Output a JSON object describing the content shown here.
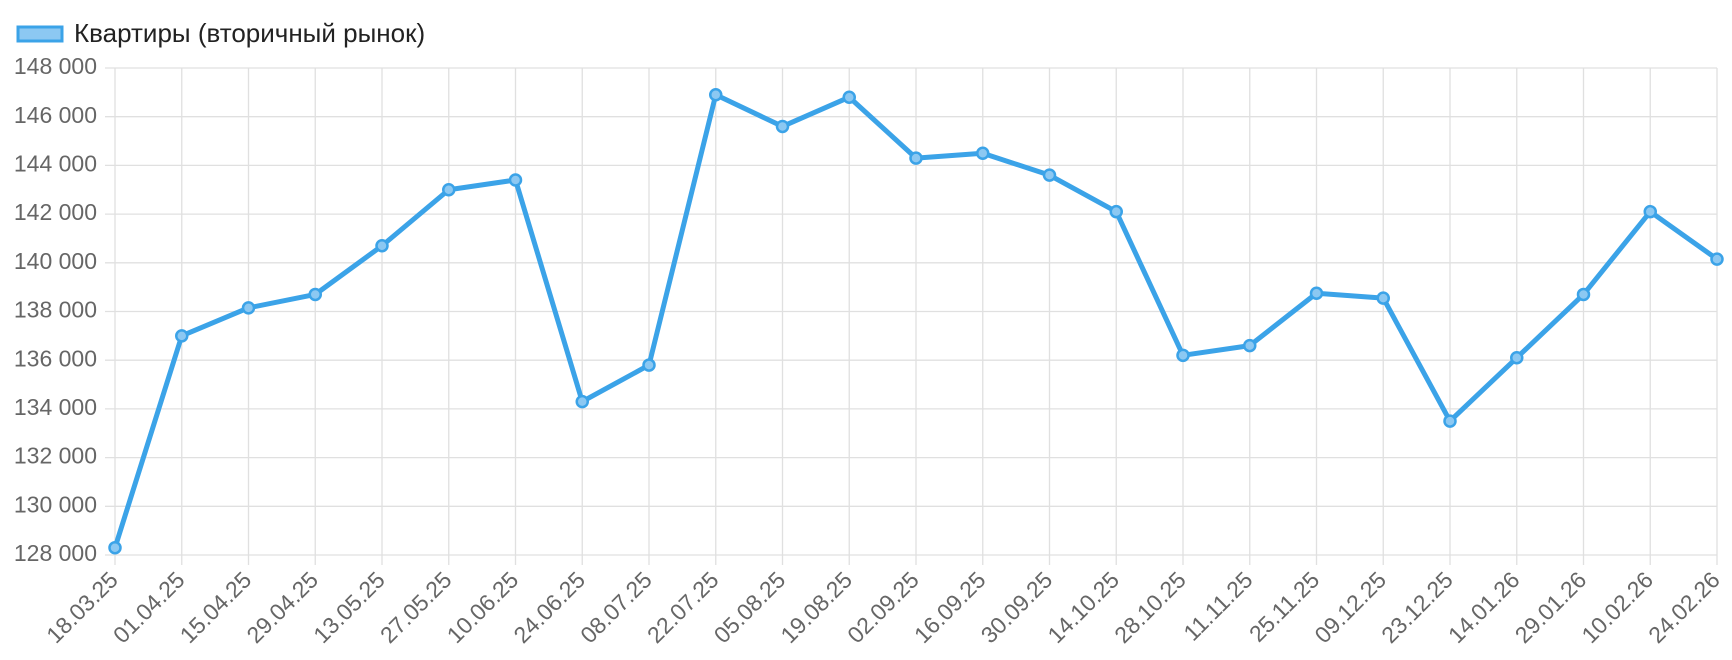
{
  "chart_data": {
    "type": "line",
    "categories": [
      "18.03.25",
      "01.04.25",
      "15.04.25",
      "29.04.25",
      "13.05.25",
      "27.05.25",
      "10.06.25",
      "24.06.25",
      "08.07.25",
      "22.07.25",
      "05.08.25",
      "19.08.25",
      "02.09.25",
      "16.09.25",
      "30.09.25",
      "14.10.25",
      "28.10.25",
      "11.11.25",
      "25.11.25",
      "09.12.25",
      "23.12.25",
      "14.01.26",
      "29.01.26",
      "10.02.26",
      "24.02.26"
    ],
    "series": [
      {
        "name": "Квартиры (вторичный рынок)",
        "color": "#3ba3e8",
        "values": [
          128300,
          137000,
          138150,
          138700,
          140700,
          143000,
          143400,
          134300,
          135800,
          146900,
          145600,
          146800,
          144300,
          144500,
          143600,
          142100,
          136200,
          136600,
          138750,
          138550,
          133500,
          136100,
          138700,
          142100,
          140150
        ]
      }
    ],
    "ylim": [
      128000,
      148000
    ],
    "yticks": [
      {
        "value": 128000,
        "label": "128 000"
      },
      {
        "value": 130000,
        "label": "130 000"
      },
      {
        "value": 132000,
        "label": "132 000"
      },
      {
        "value": 134000,
        "label": "134 000"
      },
      {
        "value": 136000,
        "label": "136 000"
      },
      {
        "value": 138000,
        "label": "138 000"
      },
      {
        "value": 140000,
        "label": "140 000"
      },
      {
        "value": 142000,
        "label": "142 000"
      },
      {
        "value": 144000,
        "label": "144 000"
      },
      {
        "value": 146000,
        "label": "146 000"
      },
      {
        "value": 148000,
        "label": "148 000"
      }
    ],
    "grid": true,
    "legend": "top-left"
  }
}
